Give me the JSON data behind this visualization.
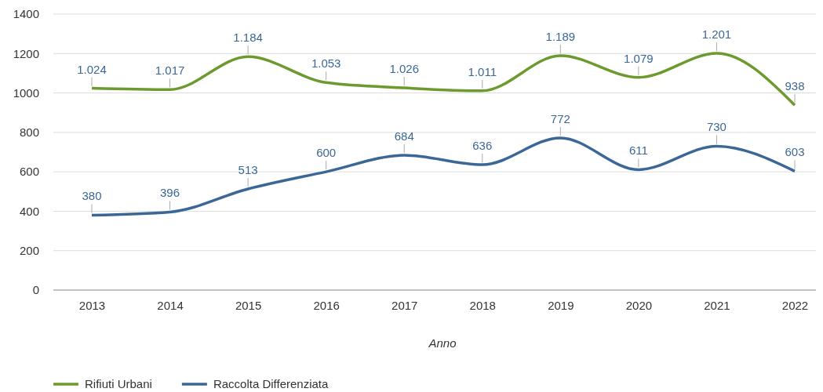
{
  "chart_data": {
    "type": "line",
    "xlabel": "Anno",
    "categories": [
      "2013",
      "2014",
      "2015",
      "2016",
      "2017",
      "2018",
      "2019",
      "2020",
      "2021",
      "2022"
    ],
    "series": [
      {
        "name": "Rifiuti Urbani",
        "color": "#6c9a2f",
        "values": [
          1024,
          1017,
          1184,
          1053,
          1026,
          1011,
          1189,
          1079,
          1201,
          938
        ],
        "value_labels": [
          "1.024",
          "1.017",
          "1.184",
          "1.053",
          "1.026",
          "1.011",
          "1.189",
          "1.079",
          "1.201",
          "938"
        ]
      },
      {
        "name": "Raccolta Differenziata",
        "color": "#3b6797",
        "values": [
          380,
          396,
          513,
          600,
          684,
          636,
          772,
          611,
          730,
          603
        ],
        "value_labels": [
          "380",
          "396",
          "513",
          "600",
          "684",
          "636",
          "772",
          "611",
          "730",
          "603"
        ]
      }
    ],
    "ylim": [
      0,
      1400
    ],
    "yticks": [
      0,
      200,
      400,
      600,
      800,
      1000,
      1200,
      1400
    ],
    "grid": "y",
    "legend": "bottom",
    "marker": "none",
    "line_style": "solid"
  }
}
